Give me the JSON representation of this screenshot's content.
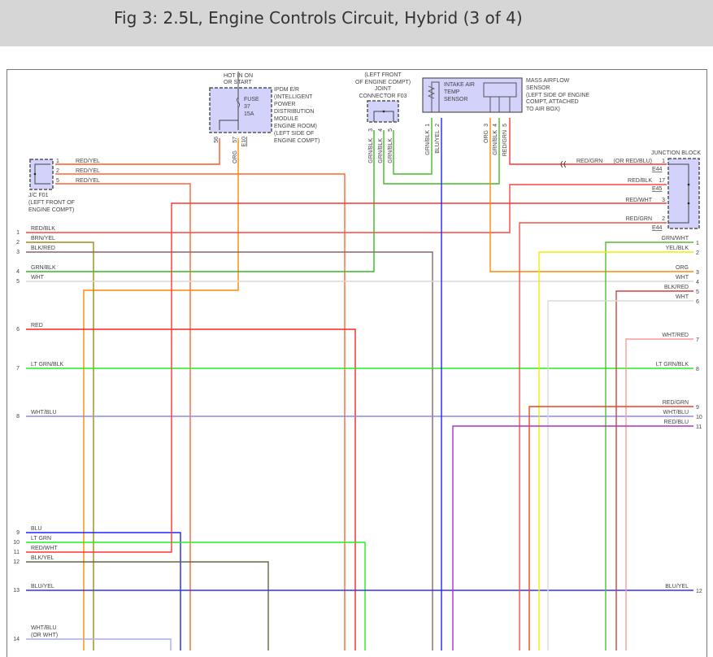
{
  "header": {
    "title": "Fig 3: 2.5L, Engine Controls Circuit, Hybrid (3 of 4)"
  },
  "ipdm": {
    "hot_label": [
      "HOT IN ON",
      "OR START"
    ],
    "fuse": [
      "FUSE",
      "37",
      "15A"
    ],
    "desc": [
      "IPDM E/R",
      "(INTELLIGENT",
      "POWER",
      "DISTRIBUTION",
      "MODULE",
      "ENGINE ROOM)",
      "(LEFT SIDE OF",
      "ENGINE COMPT)"
    ],
    "pins": [
      "56",
      "57"
    ],
    "connector": "E10",
    "wire_label": "ORG"
  },
  "jc_f01": {
    "desc": [
      "J/C F01",
      "(LEFT FRONT OF",
      "ENGINE COMPT)"
    ],
    "pins": [
      "1",
      "2",
      "5"
    ],
    "wire_labels": [
      "RED/YEL",
      "RED/YEL",
      "RED/YEL"
    ]
  },
  "joint_f03": {
    "desc": [
      "(LEFT FRONT",
      "OF ENGINE COMPT)",
      "JOINT",
      "CONNECTOR F03"
    ],
    "pins": [
      "3",
      "4",
      "5"
    ],
    "wire_labels": [
      "GRN/BLK",
      "GRN/BLK",
      "GRN/BLK"
    ]
  },
  "maf": {
    "intake": [
      "INTAKE AIR",
      "TEMP",
      "SENSOR"
    ],
    "desc": [
      "MASS AIRFLOW",
      "SENSOR",
      "(LEFT SIDE OF ENGINE",
      "COMPT, ATTACHED",
      "TO AIR BOX)"
    ],
    "pins": [
      "1",
      "2",
      "3",
      "4",
      "5"
    ],
    "wire_labels": [
      "GRN/BLK",
      "BLU/YEL",
      "ORG",
      "GRN/BLK",
      "RED/GRN"
    ]
  },
  "junction_block": {
    "title": "JUNCTION BLOCK",
    "pins": [
      {
        "pin": "1",
        "label": "RED/GRN",
        "alt": "(OR RED/BLU)",
        "conn": "E44"
      },
      {
        "pin": "17",
        "label": "RED/BLK",
        "conn": "E45"
      },
      {
        "pin": "3",
        "label": "RED/WHT"
      },
      {
        "pin": "2",
        "label": "RED/GRN",
        "conn": "E44"
      }
    ]
  },
  "left_wires": [
    {
      "pin": "1",
      "label": "RED/BLK",
      "color": "#ff4444"
    },
    {
      "pin": "2",
      "label": "BRN/YEL",
      "color": "#a08a10"
    },
    {
      "pin": "3",
      "label": "BLK/RED",
      "color": "#886666"
    },
    {
      "pin": "4",
      "label": "GRN/BLK",
      "color": "#33bb22"
    },
    {
      "pin": "5",
      "label": "WHT",
      "color": "#d8d8d8"
    },
    {
      "pin": "6",
      "label": "RED",
      "color": "#ff2222"
    },
    {
      "pin": "7",
      "label": "LT GRN/BLK",
      "color": "#22ee22"
    },
    {
      "pin": "8",
      "label": "WHT/BLU",
      "color": "#8888ff"
    },
    {
      "pin": "9",
      "label": "BLU",
      "color": "#2222ff"
    },
    {
      "pin": "10",
      "label": "LT GRN",
      "color": "#22ee22"
    },
    {
      "pin": "11",
      "label": "RED/WHT",
      "color": "#ff2222"
    },
    {
      "pin": "12",
      "label": "BLK/YEL",
      "color": "#666644"
    },
    {
      "pin": "13",
      "label": "BLU/YEL",
      "color": "#2222ff"
    },
    {
      "pin": "14",
      "label": "WHT/BLU",
      "alt": "(OR WHT)",
      "color": "#aaaaff"
    }
  ],
  "right_wires": [
    {
      "pin": "1",
      "label": "GRN/WHT",
      "color": "#55bb33"
    },
    {
      "pin": "2",
      "label": "YEL/BLK",
      "color": "#eeee00"
    },
    {
      "pin": "3",
      "label": "ORG",
      "color": "#ff8800"
    },
    {
      "pin": "4",
      "label": "WHT",
      "color": "#d8d8d8"
    },
    {
      "pin": "5",
      "label": "BLK/RED",
      "color": "#cc4444"
    },
    {
      "pin": "6",
      "label": "WHT",
      "color": "#d8d8d8"
    },
    {
      "pin": "7",
      "label": "WHT/RED",
      "color": "#ff9999"
    },
    {
      "pin": "8",
      "label": "LT GRN/BLK",
      "color": "#22ee22"
    },
    {
      "pin": "9",
      "label": "RED/GRN",
      "color": "#ee4422"
    },
    {
      "pin": "10",
      "label": "WHT/BLU",
      "color": "#8888ff"
    },
    {
      "pin": "11",
      "label": "RED/BLU",
      "color": "#aa33cc"
    },
    {
      "pin": "12",
      "label": "BLU/YEL",
      "color": "#2222ff"
    }
  ]
}
